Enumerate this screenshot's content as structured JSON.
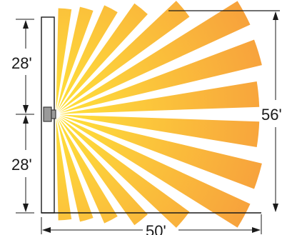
{
  "labels": {
    "upper_half": "28'",
    "lower_half": "28'",
    "total_height": "56'",
    "total_width": "50'"
  },
  "colors": {
    "ray_inner": "#ffe23a",
    "ray_outer": "#f7a23c",
    "line": "#1a1a1a",
    "sensor_body": "#9a9a9a",
    "sensor_edge": "#3a3a3a"
  },
  "coverage": {
    "ray_count": 16
  }
}
